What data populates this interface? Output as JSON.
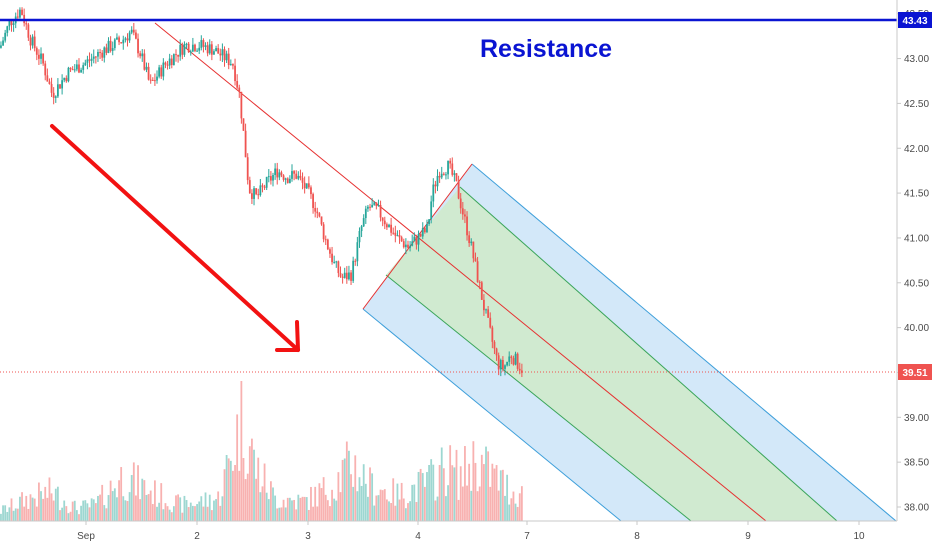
{
  "chart_data": {
    "type": "candlestick",
    "y_range": [
      37.9,
      43.75
    ],
    "y_ticks": [
      "43.50",
      "43.00",
      "42.50",
      "42.00",
      "41.50",
      "41.00",
      "40.50",
      "40.00",
      "39.50",
      "39.00",
      "38.50",
      "38.00"
    ],
    "x_ticks": [
      "Sep",
      "2",
      "3",
      "4",
      "7",
      "8",
      "9",
      "10"
    ],
    "resistance": {
      "value": 43.43,
      "label": "43.43",
      "annotation": "Resistance",
      "color": "#0a14d2"
    },
    "last_price": {
      "value": 39.51,
      "label": "39.51",
      "color": "#ef5350"
    },
    "up_color": "#26a69a",
    "down_color": "#ef5350",
    "channel_fill_outer": "#bcdcf6",
    "channel_fill_inner": "#cfeacb",
    "price_path": [
      [
        0.0,
        43.12
      ],
      [
        0.1,
        43.4
      ],
      [
        0.22,
        43.55
      ],
      [
        0.32,
        43.22
      ],
      [
        0.45,
        42.95
      ],
      [
        0.55,
        42.6
      ],
      [
        0.72,
        42.85
      ],
      [
        0.9,
        42.95
      ],
      [
        1.1,
        43.1
      ],
      [
        1.28,
        43.2
      ],
      [
        1.38,
        43.3
      ],
      [
        1.48,
        43.05
      ],
      [
        1.58,
        42.7
      ],
      [
        1.75,
        42.95
      ],
      [
        1.95,
        43.15
      ],
      [
        2.1,
        43.15
      ],
      [
        2.25,
        43.1
      ],
      [
        2.38,
        43.0
      ],
      [
        2.45,
        42.95
      ],
      [
        2.52,
        42.6
      ],
      [
        2.57,
        42.1
      ],
      [
        2.62,
        41.55
      ],
      [
        2.7,
        41.45
      ],
      [
        2.8,
        41.6
      ],
      [
        2.92,
        41.75
      ],
      [
        3.02,
        41.68
      ],
      [
        3.12,
        41.7
      ],
      [
        3.22,
        41.55
      ],
      [
        3.32,
        41.35
      ],
      [
        3.42,
        41.0
      ],
      [
        3.52,
        40.7
      ],
      [
        3.6,
        40.55
      ],
      [
        3.7,
        40.6
      ],
      [
        3.75,
        40.85
      ],
      [
        3.8,
        41.1
      ],
      [
        3.88,
        41.35
      ],
      [
        3.98,
        41.3
      ],
      [
        4.08,
        41.15
      ],
      [
        4.18,
        41.0
      ],
      [
        4.3,
        40.9
      ],
      [
        4.4,
        41.0
      ],
      [
        4.5,
        41.1
      ],
      [
        4.55,
        41.5
      ],
      [
        4.62,
        41.75
      ],
      [
        4.72,
        41.8
      ],
      [
        4.8,
        41.6
      ],
      [
        4.88,
        41.25
      ],
      [
        4.95,
        40.95
      ],
      [
        5.02,
        40.6
      ],
      [
        5.1,
        40.2
      ],
      [
        5.18,
        39.85
      ],
      [
        5.24,
        39.6
      ],
      [
        5.3,
        39.55
      ],
      [
        5.38,
        39.7
      ],
      [
        5.45,
        39.6
      ],
      [
        5.52,
        39.51
      ]
    ],
    "volume_profile": [
      [
        0.0,
        0.15
      ],
      [
        0.3,
        0.35
      ],
      [
        0.55,
        0.45
      ],
      [
        0.8,
        0.2
      ],
      [
        1.0,
        0.25
      ],
      [
        1.3,
        0.7
      ],
      [
        1.6,
        0.45
      ],
      [
        1.9,
        0.25
      ],
      [
        2.3,
        0.35
      ],
      [
        2.55,
        1.6
      ],
      [
        2.7,
        0.8
      ],
      [
        2.9,
        0.35
      ],
      [
        3.2,
        0.3
      ],
      [
        3.5,
        0.55
      ],
      [
        3.7,
        0.9
      ],
      [
        3.9,
        0.55
      ],
      [
        4.2,
        0.4
      ],
      [
        4.5,
        0.6
      ],
      [
        4.7,
        0.85
      ],
      [
        4.85,
        0.7
      ],
      [
        5.0,
        0.95
      ],
      [
        5.2,
        0.7
      ],
      [
        5.4,
        0.45
      ],
      [
        5.55,
        0.4
      ]
    ]
  }
}
